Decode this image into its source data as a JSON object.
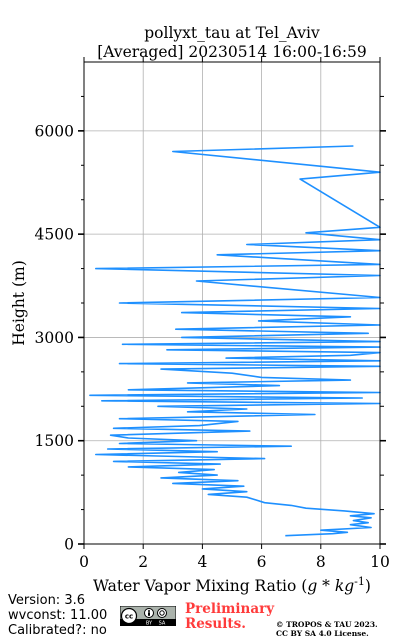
{
  "chart_data": {
    "type": "line",
    "title_line1": "pollyxt_tau at Tel_Aviv",
    "title_line2": "[Averaged] 20230514 16:00-16:59",
    "xlabel_main": "Water Vapor Mixing Ratio (",
    "xlabel_math": "g * kg",
    "xlabel_exp": "-1",
    "xlabel_close": ")",
    "ylabel": "Height (m)",
    "xlim": [
      0,
      10
    ],
    "ylim": [
      0,
      7000
    ],
    "x_ticks": [
      0,
      2,
      4,
      6,
      8,
      10
    ],
    "x_tick_labels": [
      "0",
      "2",
      "4",
      "6",
      "8",
      "10"
    ],
    "y_ticks": [
      0,
      1500,
      3000,
      4500,
      6000
    ],
    "y_tick_labels": [
      "0",
      "1500",
      "3000",
      "4500",
      "6000"
    ],
    "y_minor_ticks": [
      500,
      1000,
      2000,
      2500,
      3500,
      4000,
      5000,
      5500,
      6500
    ],
    "grid": true,
    "line_color": "#1e90ff",
    "series": [
      {
        "points": [
          [
            6.8,
            120
          ],
          [
            8.4,
            150
          ],
          [
            8.9,
            170
          ],
          [
            8.0,
            200
          ],
          [
            9.7,
            240
          ],
          [
            9.0,
            280
          ],
          [
            9.6,
            310
          ],
          [
            9.1,
            340
          ],
          [
            9.7,
            380
          ],
          [
            9.0,
            410
          ],
          [
            9.8,
            440
          ],
          [
            8.8,
            480
          ],
          [
            7.5,
            520
          ],
          [
            7.0,
            560
          ],
          [
            6.1,
            600
          ],
          [
            5.8,
            640
          ],
          [
            5.5,
            680
          ],
          [
            4.2,
            720
          ],
          [
            5.5,
            760
          ],
          [
            4.0,
            800
          ],
          [
            5.4,
            840
          ],
          [
            3.0,
            880
          ],
          [
            5.2,
            920
          ],
          [
            2.6,
            960
          ],
          [
            4.5,
            1000
          ],
          [
            3.2,
            1040
          ],
          [
            4.4,
            1080
          ],
          [
            1.5,
            1120
          ],
          [
            4.6,
            1160
          ],
          [
            1.0,
            1200
          ],
          [
            6.1,
            1240
          ],
          [
            0.4,
            1300
          ],
          [
            4.5,
            1340
          ],
          [
            0.8,
            1380
          ],
          [
            7.0,
            1420
          ],
          [
            1.2,
            1460
          ],
          [
            3.8,
            1500
          ],
          [
            1.5,
            1540
          ],
          [
            0.9,
            1580
          ],
          [
            5.6,
            1640
          ],
          [
            1.0,
            1680
          ],
          [
            3.9,
            1720
          ],
          [
            5.2,
            1780
          ],
          [
            1.2,
            1820
          ],
          [
            7.8,
            1880
          ],
          [
            3.5,
            1920
          ],
          [
            5.5,
            1960
          ],
          [
            2.5,
            2000
          ],
          [
            10.0,
            2040
          ],
          [
            0.6,
            2080
          ],
          [
            9.4,
            2120
          ],
          [
            0.2,
            2160
          ],
          [
            10.0,
            2200
          ],
          [
            1.5,
            2240
          ],
          [
            6.6,
            2300
          ],
          [
            3.5,
            2340
          ],
          [
            9.0,
            2380
          ],
          [
            6.0,
            2420
          ],
          [
            5.0,
            2480
          ],
          [
            2.6,
            2540
          ],
          [
            10.0,
            2580
          ],
          [
            1.2,
            2620
          ],
          [
            10.0,
            2660
          ],
          [
            4.8,
            2700
          ],
          [
            9.0,
            2740
          ],
          [
            10.0,
            2780
          ],
          [
            2.8,
            2820
          ],
          [
            10.0,
            2860
          ],
          [
            1.3,
            2900
          ],
          [
            10.0,
            2940
          ],
          [
            3.3,
            3000
          ],
          [
            9.6,
            3060
          ],
          [
            3.1,
            3120
          ],
          [
            10.0,
            3180
          ],
          [
            5.9,
            3240
          ],
          [
            9.0,
            3300
          ],
          [
            3.3,
            3360
          ],
          [
            10.0,
            3420
          ],
          [
            1.2,
            3500
          ],
          [
            10.0,
            3580
          ],
          [
            3.8,
            3820
          ],
          [
            10.0,
            3900
          ],
          [
            0.4,
            4000
          ],
          [
            10.0,
            4060
          ],
          [
            4.5,
            4200
          ],
          [
            10.0,
            4260
          ],
          [
            5.5,
            4350
          ],
          [
            10.0,
            4420
          ],
          [
            7.5,
            4520
          ],
          [
            10.0,
            4600
          ],
          [
            7.3,
            5300
          ],
          [
            10.0,
            5400
          ],
          [
            3.0,
            5700
          ],
          [
            9.1,
            5780
          ]
        ]
      }
    ]
  },
  "footer": {
    "version": "Version: 3.6",
    "wvconst": "wvconst:  11.00",
    "calibrated": "Calibrated?: no",
    "preliminary_line1": "Preliminary",
    "preliminary_line2": "Results.",
    "copyright_line1": "© TROPOS & TAU 2023.",
    "copyright_line2": "CC BY SA 4.0 License."
  },
  "badge": {
    "cc": "cc",
    "by": "BY",
    "sa": "SA"
  }
}
